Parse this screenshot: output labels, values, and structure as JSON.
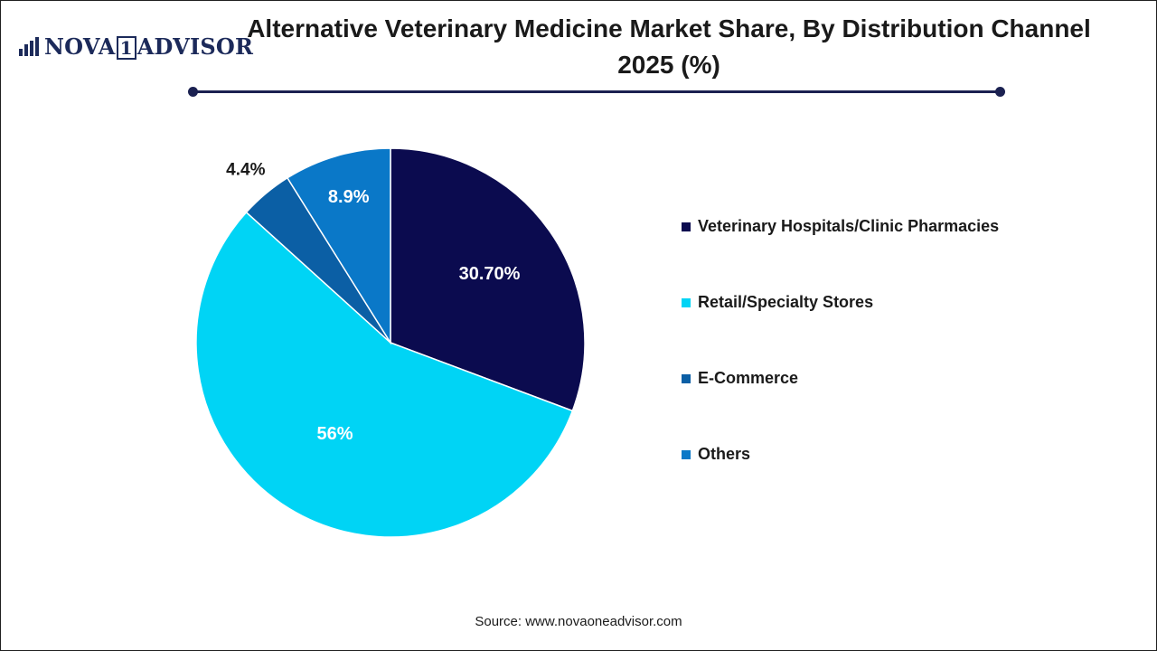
{
  "brand": {
    "logo_text_a": "NOVA",
    "logo_text_box": "1",
    "logo_text_b": "ADVISOR"
  },
  "chart_data": {
    "type": "pie",
    "title": "Alternative Veterinary Medicine Market Share, By Distribution Channel 2025 (%)",
    "start_angle_deg": 0,
    "direction": "clockwise",
    "slices": [
      {
        "label": "Veterinary Hospitals/Clinic Pharmacies",
        "value": 30.7,
        "value_label": "30.70%",
        "color": "#0b0b4f",
        "label_color": "#ffffff"
      },
      {
        "label": "Retail/Specialty Stores",
        "value": 56,
        "value_label": "56%",
        "color": "#00d4f5",
        "label_color": "#ffffff"
      },
      {
        "label": "E-Commerce",
        "value": 4.4,
        "value_label": "4.4%",
        "color": "#0b5fa5",
        "label_color": "#1a1a1a"
      },
      {
        "label": "Others",
        "value": 8.9,
        "value_label": "8.9%",
        "color": "#0a78c8",
        "label_color": "#ffffff"
      }
    ],
    "legend_position": "right"
  },
  "source": "Source: www.novaoneadvisor.com"
}
